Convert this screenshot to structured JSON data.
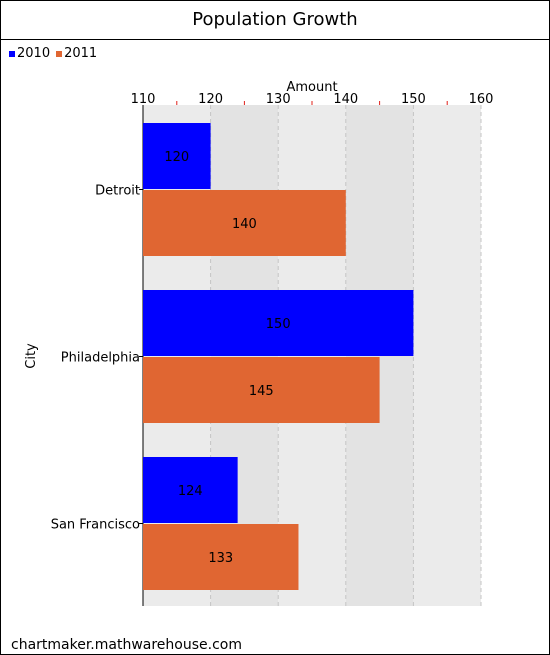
{
  "footer": "chartmaker.mathwarehouse.com",
  "chart_data": {
    "type": "bar",
    "orientation": "horizontal",
    "title": "Population Growth",
    "xlabel": "Amount",
    "ylabel": "City",
    "categories": [
      "Detroit",
      "Philadelphia",
      "San Francisco"
    ],
    "series": [
      {
        "name": "2010",
        "color": "#0000ff",
        "values": [
          120,
          150,
          124
        ]
      },
      {
        "name": "2011",
        "color": "#e06632",
        "values": [
          140,
          145,
          133
        ]
      }
    ],
    "xlim": [
      110,
      160
    ],
    "xticks": [
      "110",
      "120",
      "130",
      "140",
      "150",
      "160"
    ],
    "axis_position": "top",
    "grid": true,
    "legend_position": "top-left"
  }
}
